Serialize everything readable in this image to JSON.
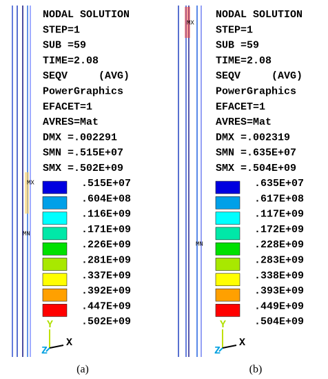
{
  "panels": [
    {
      "lines": [
        "NODAL SOLUTION",
        "STEP=1",
        "SUB =59",
        "TIME=2.08",
        "SEQV     (AVG)",
        "PowerGraphics",
        "EFACET=1",
        "AVRES=Mat",
        "DMX =.002291",
        "SMN =.515E+07",
        "SMX =.502E+09"
      ],
      "legend": [
        ".515E+07",
        ".604E+08",
        ".116E+09",
        ".171E+09",
        ".226E+09",
        ".281E+09",
        ".337E+09",
        ".392E+09",
        ".447E+09",
        ".502E+09"
      ],
      "max_marker": "MX",
      "min_marker": "MN",
      "caption": "(a)"
    },
    {
      "lines": [
        "NODAL SOLUTION",
        "STEP=1",
        "SUB =59",
        "TIME=2.08",
        "SEQV     (AVG)",
        "PowerGraphics",
        "EFACET=1",
        "AVRES=Mat",
        "DMX =.002319",
        "SMN =.635E+07",
        "SMX =.504E+09"
      ],
      "legend": [
        ".635E+07",
        ".617E+08",
        ".117E+09",
        ".172E+09",
        ".228E+09",
        ".283E+09",
        ".338E+09",
        ".393E+09",
        ".449E+09",
        ".504E+09"
      ],
      "max_marker": "MX",
      "min_marker": "MN",
      "caption": "(b)"
    }
  ],
  "swatch_colors": [
    "#0000e0",
    "#00a0e8",
    "#00ffff",
    "#00e8a8",
    "#00e000",
    "#a8e800",
    "#ffff00",
    "#ffa000",
    "#ff0000"
  ],
  "triad": {
    "y": "Y",
    "x": "X",
    "z": "Z"
  }
}
